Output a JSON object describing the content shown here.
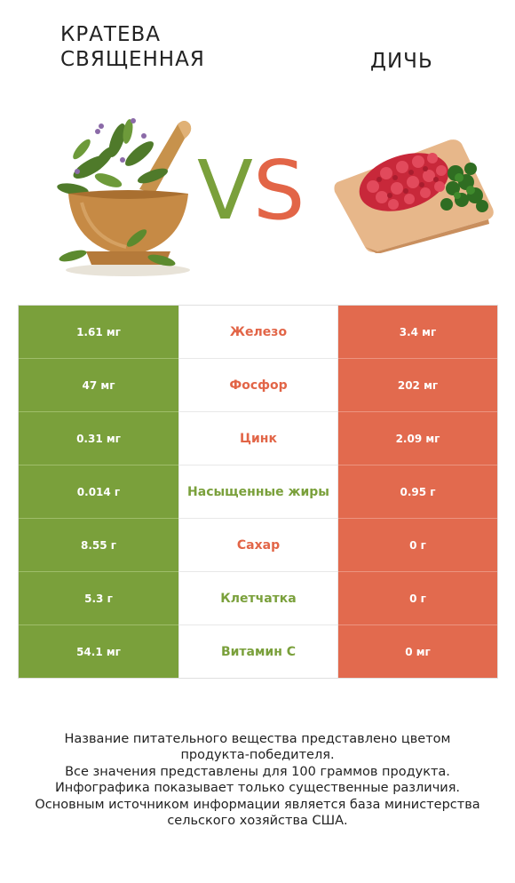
{
  "header": {
    "left_title_line1": "Кратева",
    "left_title_line2": "священная",
    "right_title": "Дичь",
    "vs_v": "V",
    "vs_s": "S"
  },
  "images": {
    "left": "herbs-in-mortar-image",
    "right": "ground-meat-on-board-image"
  },
  "colors": {
    "left_accent": "#7aa03b",
    "right_accent": "#e26a4e"
  },
  "rows": [
    {
      "left": "1.61 мг",
      "nutrient": "Железо",
      "right": "3.4 мг",
      "winner": "right"
    },
    {
      "left": "47 мг",
      "nutrient": "Фосфор",
      "right": "202 мг",
      "winner": "right"
    },
    {
      "left": "0.31 мг",
      "nutrient": "Цинк",
      "right": "2.09 мг",
      "winner": "right"
    },
    {
      "left": "0.014 г",
      "nutrient": "Насыщенные жиры",
      "right": "0.95 г",
      "winner": "left"
    },
    {
      "left": "8.55 г",
      "nutrient": "Сахар",
      "right": "0 г",
      "winner": "right"
    },
    {
      "left": "5.3 г",
      "nutrient": "Клетчатка",
      "right": "0 г",
      "winner": "left"
    },
    {
      "left": "54.1 мг",
      "nutrient": "Витамин C",
      "right": "0 мг",
      "winner": "left"
    }
  ],
  "footer": {
    "line1": "Название питательного вещества представлено цветом",
    "line2": "продукта-победителя.",
    "line3": "Все значения представлены для 100 граммов продукта.",
    "line4": "Инфографика показывает только существенные различия.",
    "line5": "Основным источником информации является база министерства",
    "line6": "сельского хозяйства США."
  }
}
